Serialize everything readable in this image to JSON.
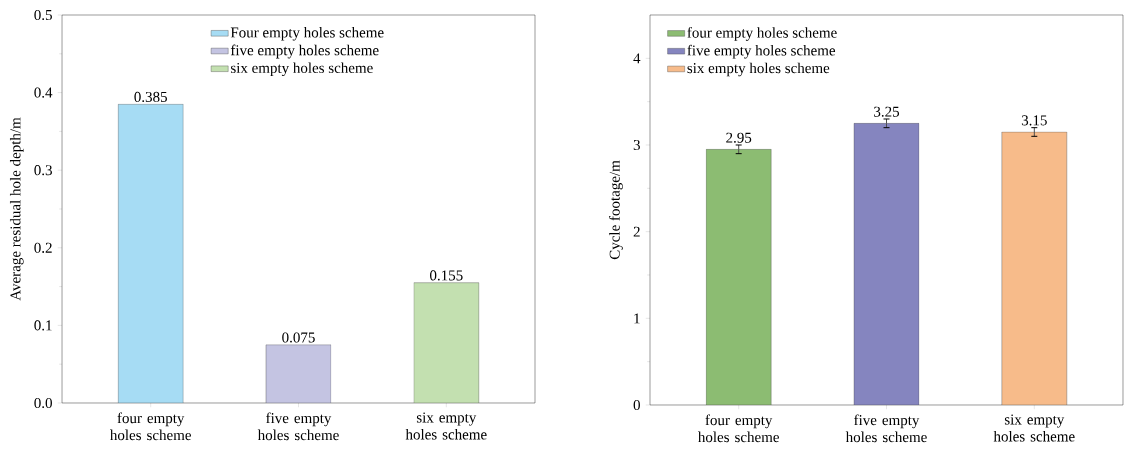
{
  "chart_data": [
    {
      "type": "bar",
      "ylabel": "Average residual hole depth/m",
      "categories": [
        "four empty holes scheme",
        "five empty holes scheme",
        "six empty holes scheme"
      ],
      "series": [
        {
          "name": "Four empty holes scheme",
          "color": "#a6dcf4",
          "values": [
            0.385,
            null,
            null
          ]
        },
        {
          "name": "five empty holes scheme",
          "color": "#c4c4e2",
          "values": [
            null,
            0.075,
            null
          ]
        },
        {
          "name": "six empty holes scheme",
          "color": "#c3e0b0",
          "values": [
            null,
            null,
            0.155
          ]
        }
      ],
      "ylim": [
        0,
        0.5
      ],
      "yticks": [
        {
          "value": 0,
          "label": "0.0"
        },
        0.1,
        0.2,
        0.3,
        0.4,
        0.5
      ],
      "data_labels": true,
      "legend": "top"
    },
    {
      "type": "bar",
      "ylabel": "Cycle footage/m",
      "categories": [
        "four empty holes scheme",
        "five empty holes scheme",
        "six empty holes scheme"
      ],
      "series": [
        {
          "name": "four empty holes scheme",
          "color": "#8cbc72",
          "values": [
            2.95,
            null,
            null
          ],
          "errors": [
            0.05,
            null,
            null
          ]
        },
        {
          "name": "five empty holes scheme",
          "color": "#8585bf",
          "values": [
            null,
            3.25,
            null
          ],
          "errors": [
            null,
            0.05,
            null
          ]
        },
        {
          "name": "six empty holes scheme",
          "color": "#f7bb8a",
          "values": [
            null,
            null,
            3.15
          ],
          "errors": [
            null,
            null,
            0.05
          ]
        }
      ],
      "ylim": [
        0,
        4.5
      ],
      "yticks": [
        0,
        1,
        2,
        3,
        4
      ],
      "data_labels": true,
      "legend": "top left"
    }
  ]
}
